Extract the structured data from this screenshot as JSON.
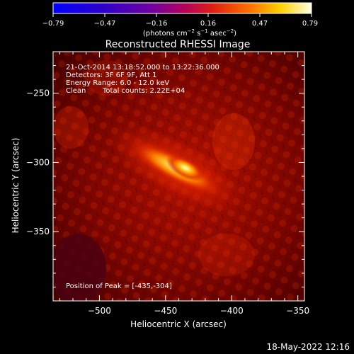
{
  "chart_data": {
    "type": "heatmap",
    "title": "Reconstructed RHESSI Image",
    "xlabel": "Heliocentric X (arcsec)",
    "ylabel": "Heliocentric Y (arcsec)",
    "xlim": [
      -535,
      -345
    ],
    "ylim": [
      -400,
      -220
    ],
    "x_ticks": [
      -500,
      -450,
      -400,
      -350
    ],
    "y_ticks": [
      -250,
      -300,
      -350
    ],
    "colorbar": {
      "range": [
        -0.79,
        0.79
      ],
      "ticks": [
        "-0.79",
        "-0.47",
        "-0.16",
        "0.16",
        "0.47",
        "0.79"
      ],
      "unit_label": "(photons cm",
      "unit_exp1": "-2",
      "unit_mid": " s",
      "unit_exp2": "-1",
      "unit_mid2": " asec",
      "unit_exp3": "-2",
      "unit_close": ")"
    },
    "annotations": {
      "line1": "21-Oct-2014 13:18:52.000 to 13:22:36.000",
      "line2": "Detectors: 3F 6F 9F, Att 1",
      "line3": "Energy Range: 6.0 - 12.0 keV",
      "line4a": "Clean",
      "line4b": "Total counts: 2.22E+04",
      "peak": "Position of Peak = [-435,-304]"
    },
    "peak": {
      "x": -435,
      "y": -304,
      "value": 0.79
    },
    "emission_ridge": {
      "from": [
        -470,
        -290
      ],
      "to": [
        -415,
        -318
      ],
      "angle_deg": -27
    },
    "timestamp": "18-May-2022 12:16"
  }
}
